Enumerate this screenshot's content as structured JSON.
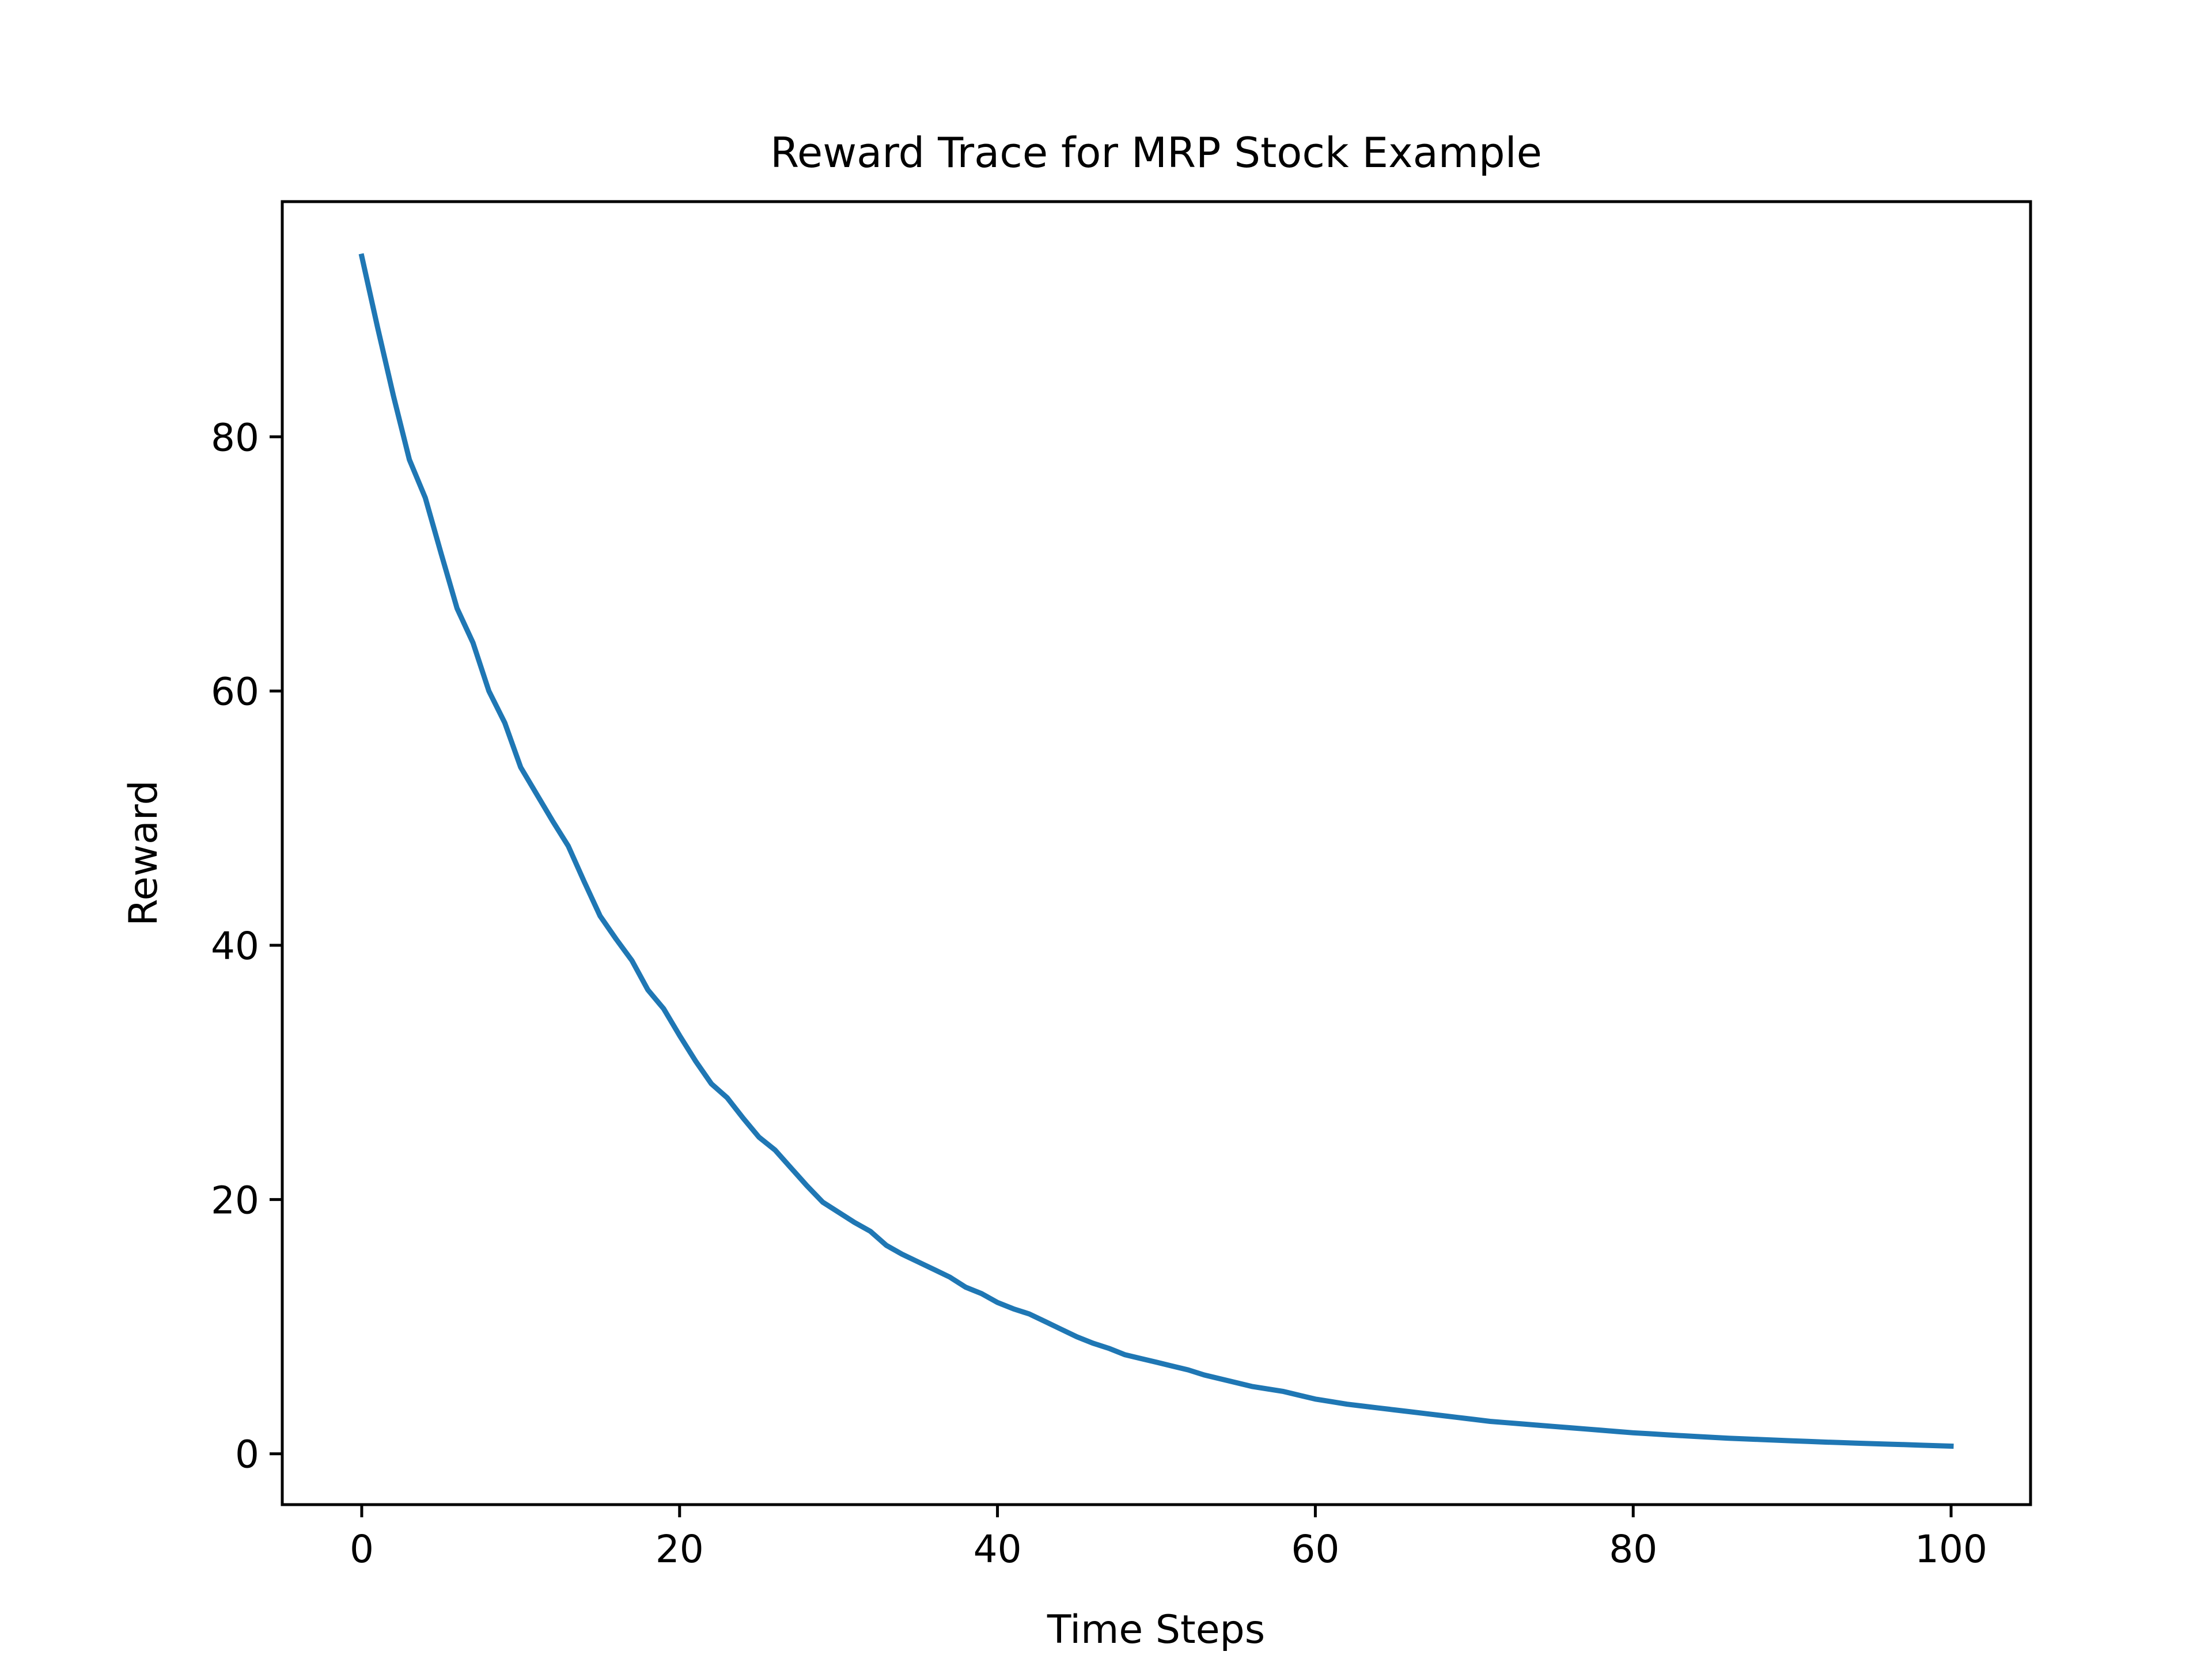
{
  "chart_data": {
    "type": "line",
    "title": "Reward Trace for MRP Stock Example",
    "xlabel": "Time Steps",
    "ylabel": "Reward",
    "xlim": [
      -5,
      105
    ],
    "ylim": [
      -4,
      98.5
    ],
    "xticks": [
      0,
      20,
      40,
      60,
      80,
      100
    ],
    "yticks": [
      0,
      20,
      40,
      60,
      80
    ],
    "grid": false,
    "series_color": "#1f77b4",
    "x": [
      0,
      1,
      2,
      3,
      4,
      5,
      6,
      7,
      8,
      9,
      10,
      11,
      12,
      13,
      14,
      15,
      16,
      17,
      18,
      19,
      20,
      21,
      22,
      23,
      24,
      25,
      26,
      27,
      28,
      29,
      30,
      31,
      32,
      33,
      34,
      35,
      36,
      37,
      38,
      39,
      40,
      41,
      42,
      43,
      44,
      45,
      46,
      47,
      48,
      49,
      50,
      51,
      52,
      53,
      54,
      55,
      56,
      57,
      58,
      59,
      60,
      61,
      62,
      63,
      64,
      65,
      66,
      67,
      68,
      69,
      70,
      71,
      72,
      73,
      74,
      75,
      76,
      77,
      78,
      79,
      80,
      81,
      82,
      83,
      84,
      85,
      86,
      87,
      88,
      89,
      90,
      91,
      92,
      93,
      94,
      95,
      96,
      97,
      98,
      99,
      100
    ],
    "y": [
      94.2,
      88.6,
      83.2,
      78.2,
      75.2,
      70.8,
      66.5,
      63.8,
      60.0,
      57.5,
      54.0,
      51.9,
      49.8,
      47.8,
      45.0,
      42.3,
      40.5,
      38.8,
      36.5,
      35.0,
      32.9,
      30.9,
      29.1,
      28.0,
      26.4,
      24.9,
      23.9,
      22.5,
      21.1,
      19.8,
      19.0,
      18.2,
      17.5,
      16.4,
      15.7,
      15.1,
      14.5,
      13.9,
      13.1,
      12.6,
      11.9,
      11.4,
      11.0,
      10.4,
      9.8,
      9.2,
      8.7,
      8.3,
      7.8,
      7.5,
      7.2,
      6.9,
      6.6,
      6.2,
      5.9,
      5.6,
      5.3,
      5.1,
      4.9,
      4.6,
      4.3,
      4.1,
      3.9,
      3.75,
      3.6,
      3.45,
      3.3,
      3.15,
      3.0,
      2.85,
      2.7,
      2.55,
      2.45,
      2.35,
      2.25,
      2.15,
      2.05,
      1.95,
      1.85,
      1.75,
      1.65,
      1.58,
      1.5,
      1.43,
      1.36,
      1.29,
      1.22,
      1.17,
      1.12,
      1.07,
      1.02,
      0.97,
      0.92,
      0.88,
      0.84,
      0.8,
      0.76,
      0.72,
      0.68,
      0.64,
      0.6
    ]
  }
}
